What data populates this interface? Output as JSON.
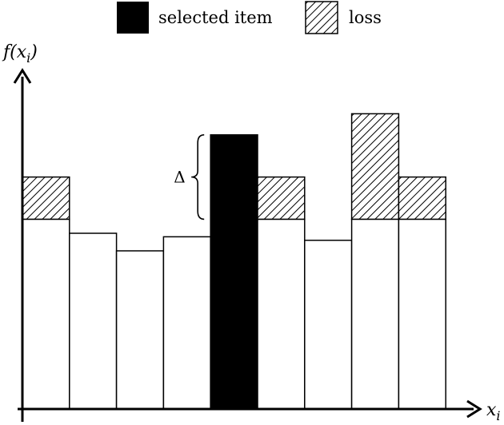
{
  "legend": {
    "selected_label": "selected item",
    "loss_label": "loss"
  },
  "axes": {
    "y_label": "f(x",
    "y_label_sub": "i",
    "y_label_close": ")",
    "x_label": "x",
    "x_label_sub": "i"
  },
  "delta_label": "Δ",
  "bars": [
    {
      "height": 0.54,
      "loss_top": 0.66,
      "selected": false
    },
    {
      "height": 0.5,
      "selected": false
    },
    {
      "height": 0.45,
      "selected": false
    },
    {
      "height": 0.49,
      "selected": false
    },
    {
      "height": 0.78,
      "selected": true
    },
    {
      "height": 0.54,
      "loss_top": 0.66,
      "selected": false
    },
    {
      "height": 0.48,
      "selected": false
    },
    {
      "height": 0.54,
      "loss_top": 0.84,
      "selected": false
    },
    {
      "height": 0.54,
      "loss_top": 0.66,
      "selected": false
    }
  ],
  "colors": {
    "selected": "#000000",
    "bar_fill": "#ffffff",
    "stroke": "#000000"
  }
}
